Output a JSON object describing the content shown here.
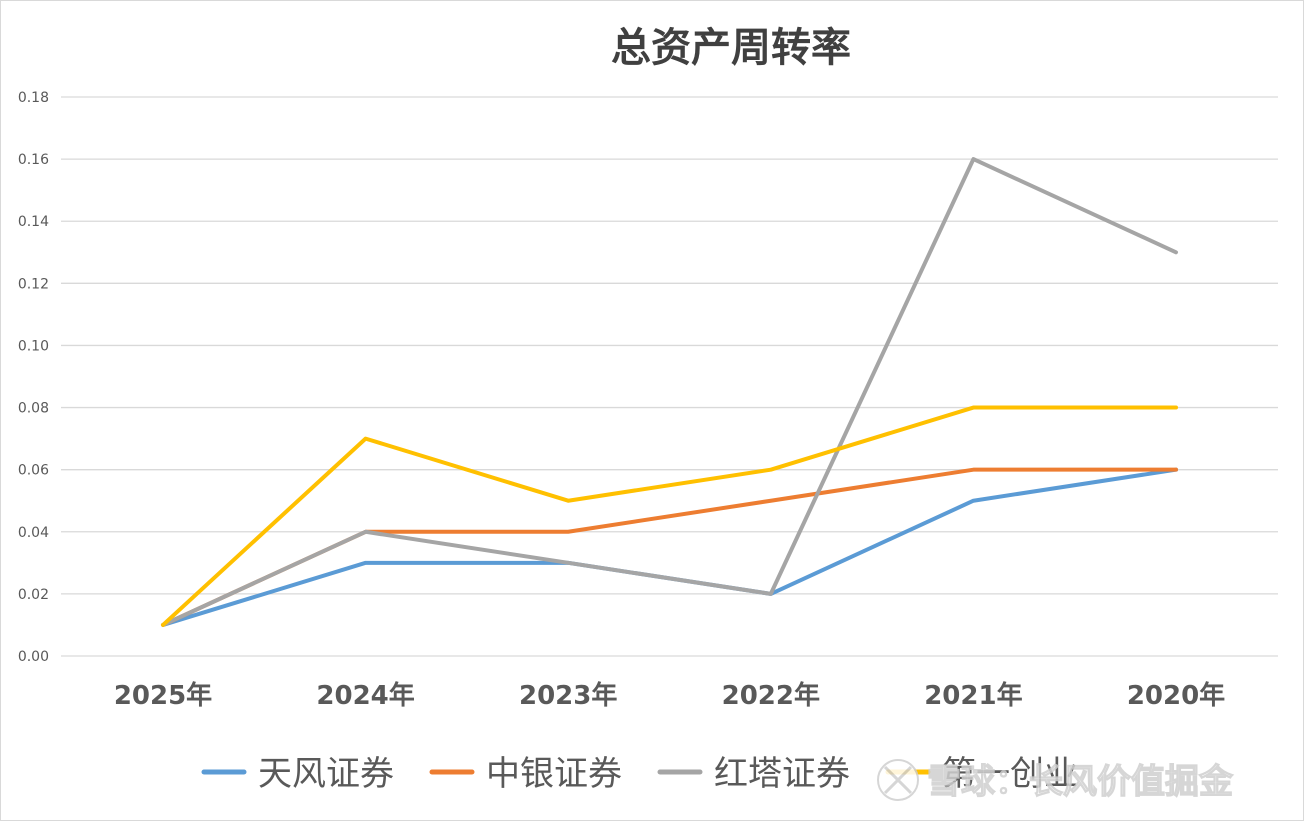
{
  "chart_data": {
    "type": "line",
    "title": "总资产周转率",
    "categories": [
      "2025年",
      "2024年",
      "2023年",
      "2022年",
      "2021年",
      "2020年"
    ],
    "ylim": [
      0,
      0.18
    ],
    "yticks": [
      "0.00",
      "0.02",
      "0.04",
      "0.06",
      "0.08",
      "0.10",
      "0.12",
      "0.14",
      "0.16",
      "0.18"
    ],
    "grid": true,
    "legend_position": "bottom",
    "series": [
      {
        "name": "天风证券",
        "color": "#5b9bd5",
        "values": [
          0.01,
          0.03,
          0.03,
          0.02,
          0.05,
          0.06
        ]
      },
      {
        "name": "中银证券",
        "color": "#ed7d31",
        "values": [
          0.01,
          0.04,
          0.04,
          0.05,
          0.06,
          0.06
        ]
      },
      {
        "name": "红塔证券",
        "color": "#a5a5a5",
        "values": [
          0.01,
          0.04,
          0.03,
          0.02,
          0.16,
          0.13
        ]
      },
      {
        "name": "第一创业",
        "color": "#ffc000",
        "values": [
          0.01,
          0.07,
          0.05,
          0.06,
          0.08,
          0.08
        ]
      }
    ]
  },
  "watermark": {
    "text": "雪球：长风价值掘金",
    "icon": "snowball-logo-icon"
  }
}
